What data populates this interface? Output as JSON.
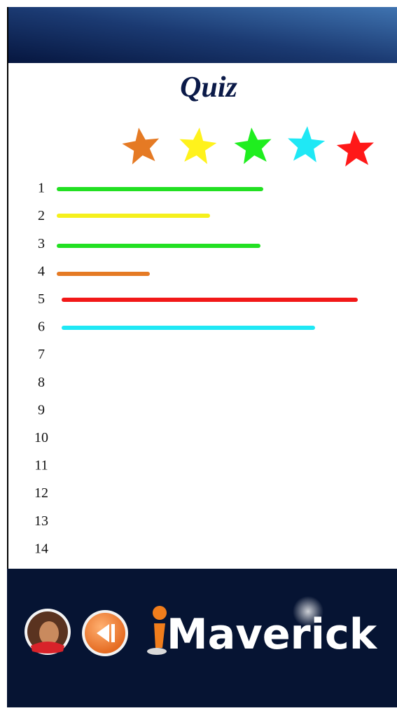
{
  "header": {
    "title": "Quiz"
  },
  "rows": [
    "1",
    "2",
    "3",
    "4",
    "5",
    "6",
    "7",
    "8",
    "9",
    "10",
    "11",
    "12",
    "13",
    "14"
  ],
  "footer": {
    "logo": "Maverick"
  }
}
